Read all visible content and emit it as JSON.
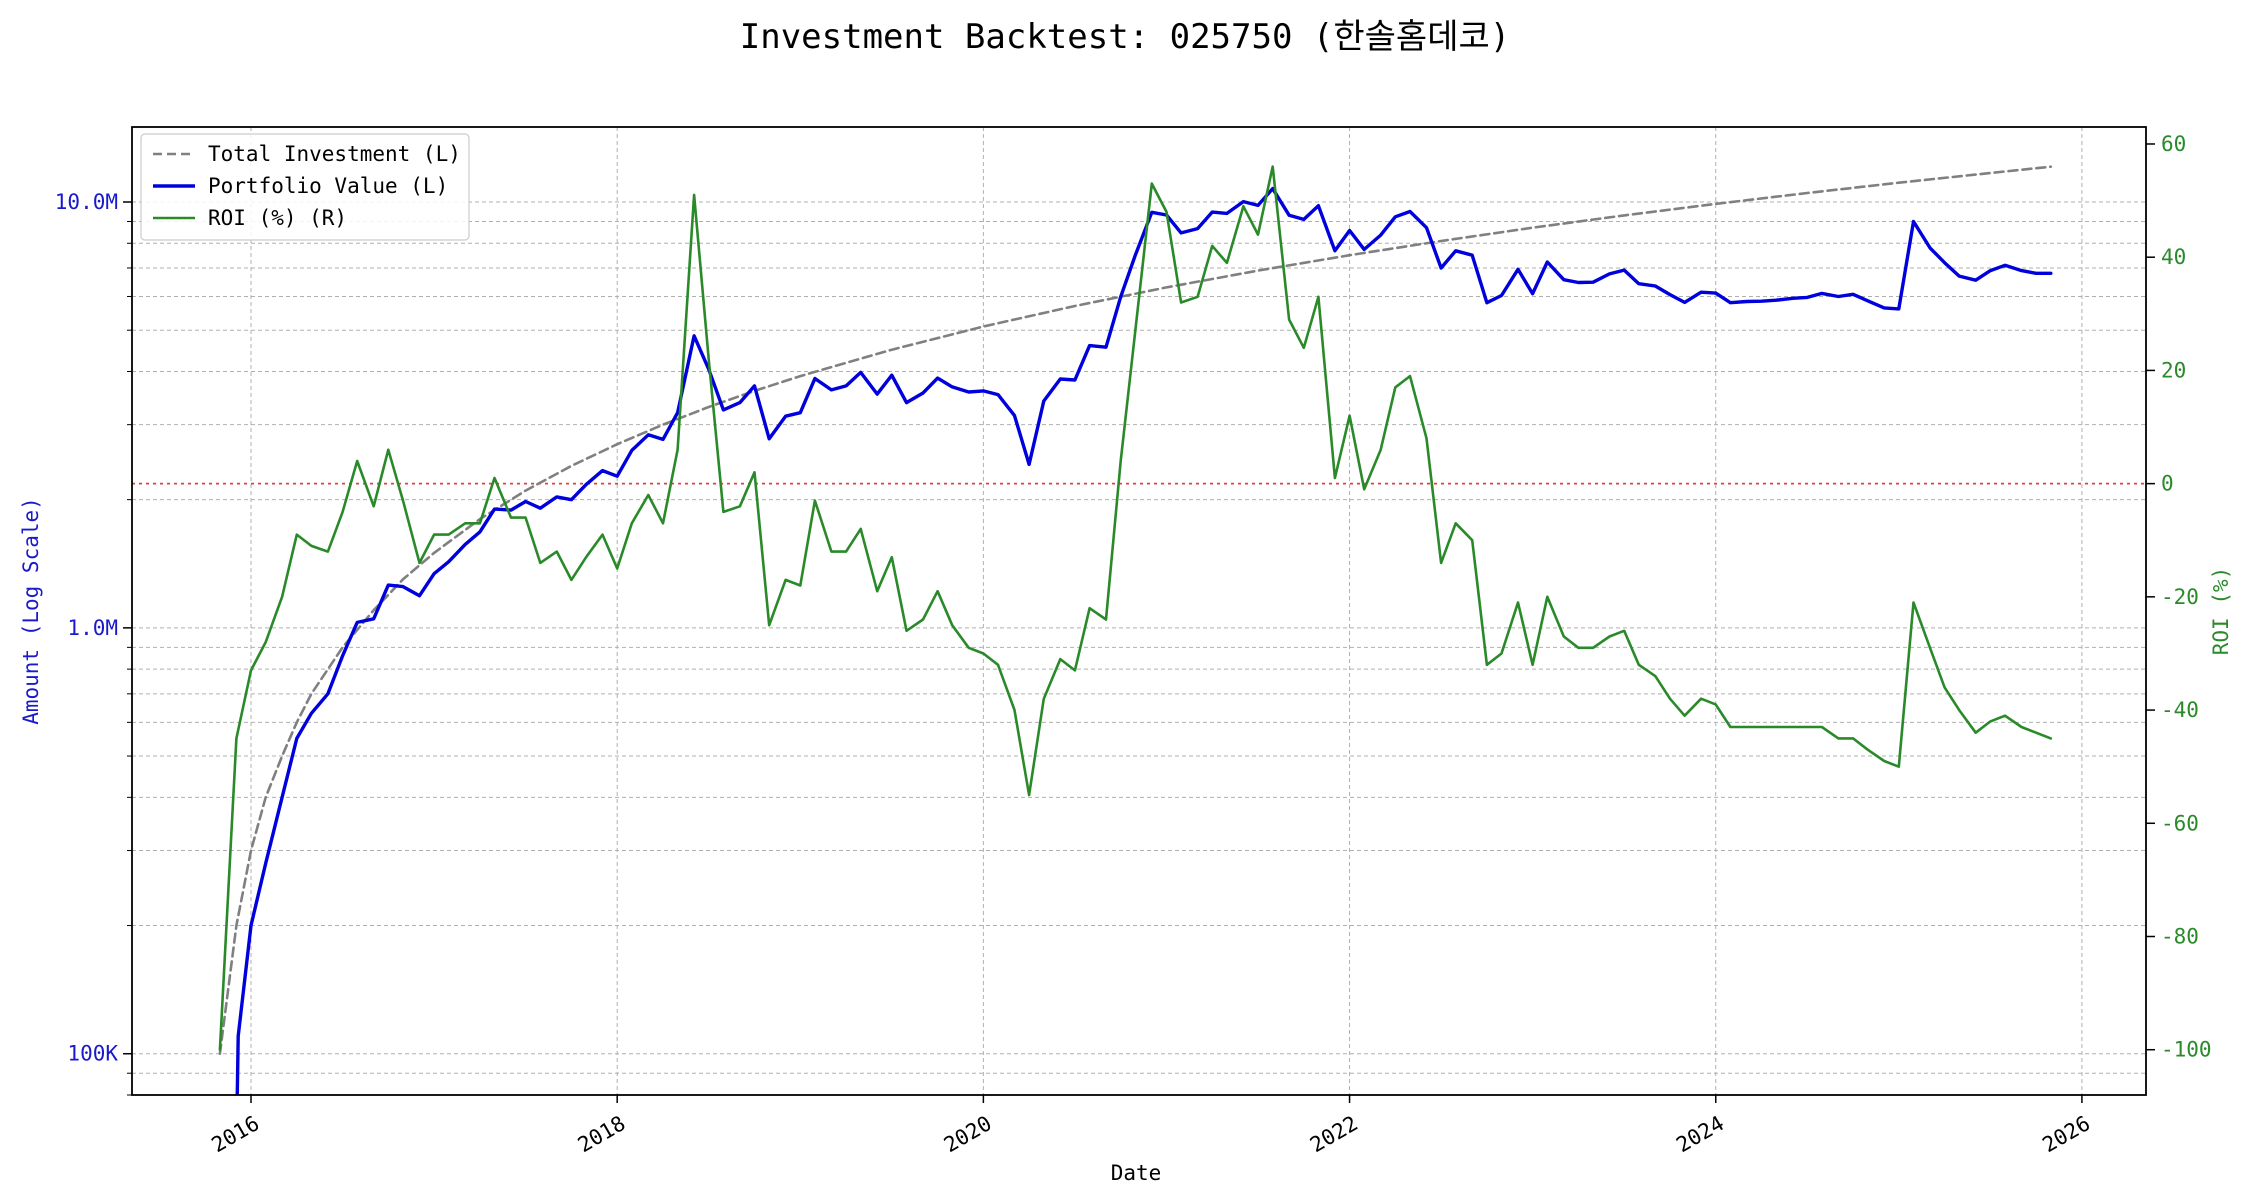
{
  "chart_data": {
    "type": "line",
    "title": "Investment Backtest: 025750 (한솔홈데코)",
    "xlabel": "Date",
    "ylabel_left": "Amount (Log Scale)",
    "ylabel_right": "ROI (%)",
    "x_ticks": [
      "2016",
      "2018",
      "2020",
      "2022",
      "2024",
      "2026"
    ],
    "x_range": [
      2015.35,
      2026.35
    ],
    "y_left_scale": "log",
    "y_left_range": [
      80000,
      15000000
    ],
    "y_left_ticks": [
      {
        "value": 100000,
        "label": "100K"
      },
      {
        "value": 1000000,
        "label": "1.0M"
      },
      {
        "value": 10000000,
        "label": "10.0M"
      }
    ],
    "y_right_range": [
      -108,
      63
    ],
    "y_right_ticks": [
      -100,
      -80,
      -60,
      -40,
      -20,
      0,
      20,
      40,
      60
    ],
    "zero_roi_reference_line": true,
    "grid": true,
    "legend_position": "top-left",
    "colors": {
      "total_investment": "#808080",
      "portfolio_value": "#0000dd",
      "roi": "#2a8a2a",
      "zero_line": "#e04040",
      "left_axis_text": "#1a1acc",
      "right_axis_text": "#2a8a2a"
    },
    "series": [
      {
        "name": "Total Investment (L)",
        "axis": "left",
        "style": "dashed",
        "points": [
          [
            2015.83,
            100000
          ],
          [
            2015.92,
            200000
          ],
          [
            2016.0,
            300000
          ],
          [
            2016.08,
            400000
          ],
          [
            2016.17,
            500000
          ],
          [
            2016.25,
            600000
          ],
          [
            2016.33,
            700000
          ],
          [
            2016.5,
            900000
          ],
          [
            2016.67,
            1100000
          ],
          [
            2016.83,
            1300000
          ],
          [
            2017.0,
            1500000
          ],
          [
            2017.25,
            1800000
          ],
          [
            2017.5,
            2100000
          ],
          [
            2017.75,
            2400000
          ],
          [
            2018.0,
            2700000
          ],
          [
            2018.25,
            3000000
          ],
          [
            2018.5,
            3300000
          ],
          [
            2018.75,
            3600000
          ],
          [
            2019.0,
            3900000
          ],
          [
            2019.5,
            4500000
          ],
          [
            2020.0,
            5100000
          ],
          [
            2020.5,
            5700000
          ],
          [
            2021.0,
            6300000
          ],
          [
            2021.5,
            6900000
          ],
          [
            2022.0,
            7500000
          ],
          [
            2022.5,
            8100000
          ],
          [
            2023.0,
            8700000
          ],
          [
            2023.5,
            9300000
          ],
          [
            2024.0,
            9900000
          ],
          [
            2024.5,
            10500000
          ],
          [
            2025.0,
            11100000
          ],
          [
            2025.5,
            11700000
          ],
          [
            2025.83,
            12100000
          ]
        ]
      },
      {
        "name": "Portfolio Value (L)",
        "axis": "left",
        "style": "solid",
        "points": [
          [
            2015.92,
            60000
          ],
          [
            2015.93,
            110000
          ],
          [
            2016.0,
            200000
          ],
          [
            2016.08,
            280000
          ],
          [
            2016.17,
            400000
          ],
          [
            2016.25,
            550000
          ],
          [
            2016.33,
            630000
          ],
          [
            2016.42,
            700000
          ],
          [
            2016.5,
            860000
          ],
          [
            2016.58,
            1030000
          ],
          [
            2016.67,
            1050000
          ],
          [
            2016.75,
            1260000
          ],
          [
            2016.83,
            1250000
          ],
          [
            2016.92,
            1190000
          ],
          [
            2017.0,
            1340000
          ],
          [
            2017.08,
            1430000
          ],
          [
            2017.17,
            1570000
          ],
          [
            2017.25,
            1680000
          ],
          [
            2017.33,
            1900000
          ],
          [
            2017.42,
            1890000
          ],
          [
            2017.5,
            1980000
          ],
          [
            2017.58,
            1910000
          ],
          [
            2017.67,
            2030000
          ],
          [
            2017.75,
            2000000
          ],
          [
            2017.83,
            2170000
          ],
          [
            2017.92,
            2340000
          ],
          [
            2018.0,
            2270000
          ],
          [
            2018.08,
            2610000
          ],
          [
            2018.17,
            2840000
          ],
          [
            2018.25,
            2770000
          ],
          [
            2018.33,
            3200000
          ],
          [
            2018.42,
            4850000
          ],
          [
            2018.5,
            4050000
          ],
          [
            2018.58,
            3250000
          ],
          [
            2018.67,
            3380000
          ],
          [
            2018.75,
            3700000
          ],
          [
            2018.83,
            2780000
          ],
          [
            2018.92,
            3140000
          ],
          [
            2019.0,
            3200000
          ],
          [
            2019.08,
            3850000
          ],
          [
            2019.17,
            3620000
          ],
          [
            2019.25,
            3700000
          ],
          [
            2019.33,
            3980000
          ],
          [
            2019.42,
            3540000
          ],
          [
            2019.5,
            3920000
          ],
          [
            2019.58,
            3380000
          ],
          [
            2019.67,
            3560000
          ],
          [
            2019.75,
            3860000
          ],
          [
            2019.83,
            3680000
          ],
          [
            2019.92,
            3580000
          ],
          [
            2020.0,
            3600000
          ],
          [
            2020.08,
            3530000
          ],
          [
            2020.17,
            3150000
          ],
          [
            2020.25,
            2420000
          ],
          [
            2020.33,
            3410000
          ],
          [
            2020.42,
            3840000
          ],
          [
            2020.5,
            3820000
          ],
          [
            2020.58,
            4600000
          ],
          [
            2020.67,
            4560000
          ],
          [
            2020.75,
            5990000
          ],
          [
            2020.83,
            7500000
          ],
          [
            2020.92,
            9460000
          ],
          [
            2021.0,
            9320000
          ],
          [
            2021.08,
            8460000
          ],
          [
            2021.17,
            8660000
          ],
          [
            2021.25,
            9470000
          ],
          [
            2021.33,
            9400000
          ],
          [
            2021.42,
            10020000
          ],
          [
            2021.5,
            9820000
          ],
          [
            2021.58,
            10750000
          ],
          [
            2021.67,
            9310000
          ],
          [
            2021.75,
            9100000
          ],
          [
            2021.83,
            9800000
          ],
          [
            2021.92,
            7680000
          ],
          [
            2022.0,
            8570000
          ],
          [
            2022.08,
            7740000
          ],
          [
            2022.17,
            8360000
          ],
          [
            2022.25,
            9230000
          ],
          [
            2022.33,
            9500000
          ],
          [
            2022.42,
            8700000
          ],
          [
            2022.5,
            7000000
          ],
          [
            2022.58,
            7680000
          ],
          [
            2022.67,
            7500000
          ],
          [
            2022.75,
            5800000
          ],
          [
            2022.83,
            6030000
          ],
          [
            2022.92,
            6950000
          ],
          [
            2023.0,
            6090000
          ],
          [
            2023.08,
            7230000
          ],
          [
            2023.17,
            6570000
          ],
          [
            2023.25,
            6470000
          ],
          [
            2023.33,
            6480000
          ],
          [
            2023.42,
            6780000
          ],
          [
            2023.5,
            6920000
          ],
          [
            2023.58,
            6430000
          ],
          [
            2023.67,
            6350000
          ],
          [
            2023.75,
            6060000
          ],
          [
            2023.83,
            5810000
          ],
          [
            2023.92,
            6140000
          ],
          [
            2024.0,
            6110000
          ],
          [
            2024.08,
            5800000
          ],
          [
            2024.17,
            5840000
          ],
          [
            2024.25,
            5850000
          ],
          [
            2024.33,
            5880000
          ],
          [
            2024.42,
            5940000
          ],
          [
            2024.5,
            5970000
          ],
          [
            2024.58,
            6100000
          ],
          [
            2024.67,
            6000000
          ],
          [
            2024.75,
            6070000
          ],
          [
            2024.83,
            5860000
          ],
          [
            2024.92,
            5640000
          ],
          [
            2025.0,
            5610000
          ],
          [
            2025.08,
            9000000
          ],
          [
            2025.17,
            7800000
          ],
          [
            2025.25,
            7200000
          ],
          [
            2025.33,
            6700000
          ],
          [
            2025.42,
            6550000
          ],
          [
            2025.5,
            6900000
          ],
          [
            2025.58,
            7100000
          ],
          [
            2025.67,
            6900000
          ],
          [
            2025.75,
            6800000
          ],
          [
            2025.83,
            6800000
          ]
        ]
      },
      {
        "name": "ROI (%) (R)",
        "axis": "right",
        "style": "solid",
        "points": [
          [
            2015.83,
            -100
          ],
          [
            2015.92,
            -45
          ],
          [
            2016.0,
            -33
          ],
          [
            2016.08,
            -28
          ],
          [
            2016.17,
            -20
          ],
          [
            2016.25,
            -9
          ],
          [
            2016.33,
            -11
          ],
          [
            2016.42,
            -12
          ],
          [
            2016.5,
            -5
          ],
          [
            2016.58,
            4
          ],
          [
            2016.67,
            -4
          ],
          [
            2016.75,
            6
          ],
          [
            2016.83,
            -3
          ],
          [
            2016.92,
            -14
          ],
          [
            2017.0,
            -9
          ],
          [
            2017.08,
            -9
          ],
          [
            2017.17,
            -7
          ],
          [
            2017.25,
            -7
          ],
          [
            2017.33,
            1
          ],
          [
            2017.42,
            -6
          ],
          [
            2017.5,
            -6
          ],
          [
            2017.58,
            -14
          ],
          [
            2017.67,
            -12
          ],
          [
            2017.75,
            -17
          ],
          [
            2017.83,
            -13
          ],
          [
            2017.92,
            -9
          ],
          [
            2018.0,
            -15
          ],
          [
            2018.08,
            -7
          ],
          [
            2018.17,
            -2
          ],
          [
            2018.25,
            -7
          ],
          [
            2018.33,
            6
          ],
          [
            2018.42,
            51
          ],
          [
            2018.5,
            22
          ],
          [
            2018.58,
            -5
          ],
          [
            2018.67,
            -4
          ],
          [
            2018.75,
            2
          ],
          [
            2018.83,
            -25
          ],
          [
            2018.92,
            -17
          ],
          [
            2019.0,
            -18
          ],
          [
            2019.08,
            -3
          ],
          [
            2019.17,
            -12
          ],
          [
            2019.25,
            -12
          ],
          [
            2019.33,
            -8
          ],
          [
            2019.42,
            -19
          ],
          [
            2019.5,
            -13
          ],
          [
            2019.58,
            -26
          ],
          [
            2019.67,
            -24
          ],
          [
            2019.75,
            -19
          ],
          [
            2019.83,
            -25
          ],
          [
            2019.92,
            -29
          ],
          [
            2020.0,
            -30
          ],
          [
            2020.08,
            -32
          ],
          [
            2020.17,
            -40
          ],
          [
            2020.25,
            -55
          ],
          [
            2020.33,
            -38
          ],
          [
            2020.42,
            -31
          ],
          [
            2020.5,
            -33
          ],
          [
            2020.58,
            -22
          ],
          [
            2020.67,
            -24
          ],
          [
            2020.75,
            4
          ],
          [
            2020.83,
            27
          ],
          [
            2020.92,
            53
          ],
          [
            2021.0,
            48
          ],
          [
            2021.08,
            32
          ],
          [
            2021.17,
            33
          ],
          [
            2021.25,
            42
          ],
          [
            2021.33,
            39
          ],
          [
            2021.42,
            49
          ],
          [
            2021.5,
            44
          ],
          [
            2021.58,
            56
          ],
          [
            2021.67,
            29
          ],
          [
            2021.75,
            24
          ],
          [
            2021.83,
            33
          ],
          [
            2021.92,
            1
          ],
          [
            2022.0,
            12
          ],
          [
            2022.08,
            -1
          ],
          [
            2022.17,
            6
          ],
          [
            2022.25,
            17
          ],
          [
            2022.33,
            19
          ],
          [
            2022.42,
            8
          ],
          [
            2022.5,
            -14
          ],
          [
            2022.58,
            -7
          ],
          [
            2022.67,
            -10
          ],
          [
            2022.75,
            -32
          ],
          [
            2022.83,
            -30
          ],
          [
            2022.92,
            -21
          ],
          [
            2023.0,
            -32
          ],
          [
            2023.08,
            -20
          ],
          [
            2023.17,
            -27
          ],
          [
            2023.25,
            -29
          ],
          [
            2023.33,
            -29
          ],
          [
            2023.42,
            -27
          ],
          [
            2023.5,
            -26
          ],
          [
            2023.58,
            -32
          ],
          [
            2023.67,
            -34
          ],
          [
            2023.75,
            -38
          ],
          [
            2023.83,
            -41
          ],
          [
            2023.92,
            -38
          ],
          [
            2024.0,
            -39
          ],
          [
            2024.08,
            -43
          ],
          [
            2024.17,
            -43
          ],
          [
            2024.25,
            -43
          ],
          [
            2024.33,
            -43
          ],
          [
            2024.42,
            -43
          ],
          [
            2024.5,
            -43
          ],
          [
            2024.58,
            -43
          ],
          [
            2024.67,
            -45
          ],
          [
            2024.75,
            -45
          ],
          [
            2024.83,
            -47
          ],
          [
            2024.92,
            -49
          ],
          [
            2025.0,
            -50
          ],
          [
            2025.08,
            -21
          ],
          [
            2025.17,
            -29
          ],
          [
            2025.25,
            -36
          ],
          [
            2025.33,
            -40
          ],
          [
            2025.42,
            -44
          ],
          [
            2025.5,
            -42
          ],
          [
            2025.58,
            -41
          ],
          [
            2025.67,
            -43
          ],
          [
            2025.75,
            -44
          ],
          [
            2025.83,
            -45
          ]
        ]
      }
    ]
  }
}
